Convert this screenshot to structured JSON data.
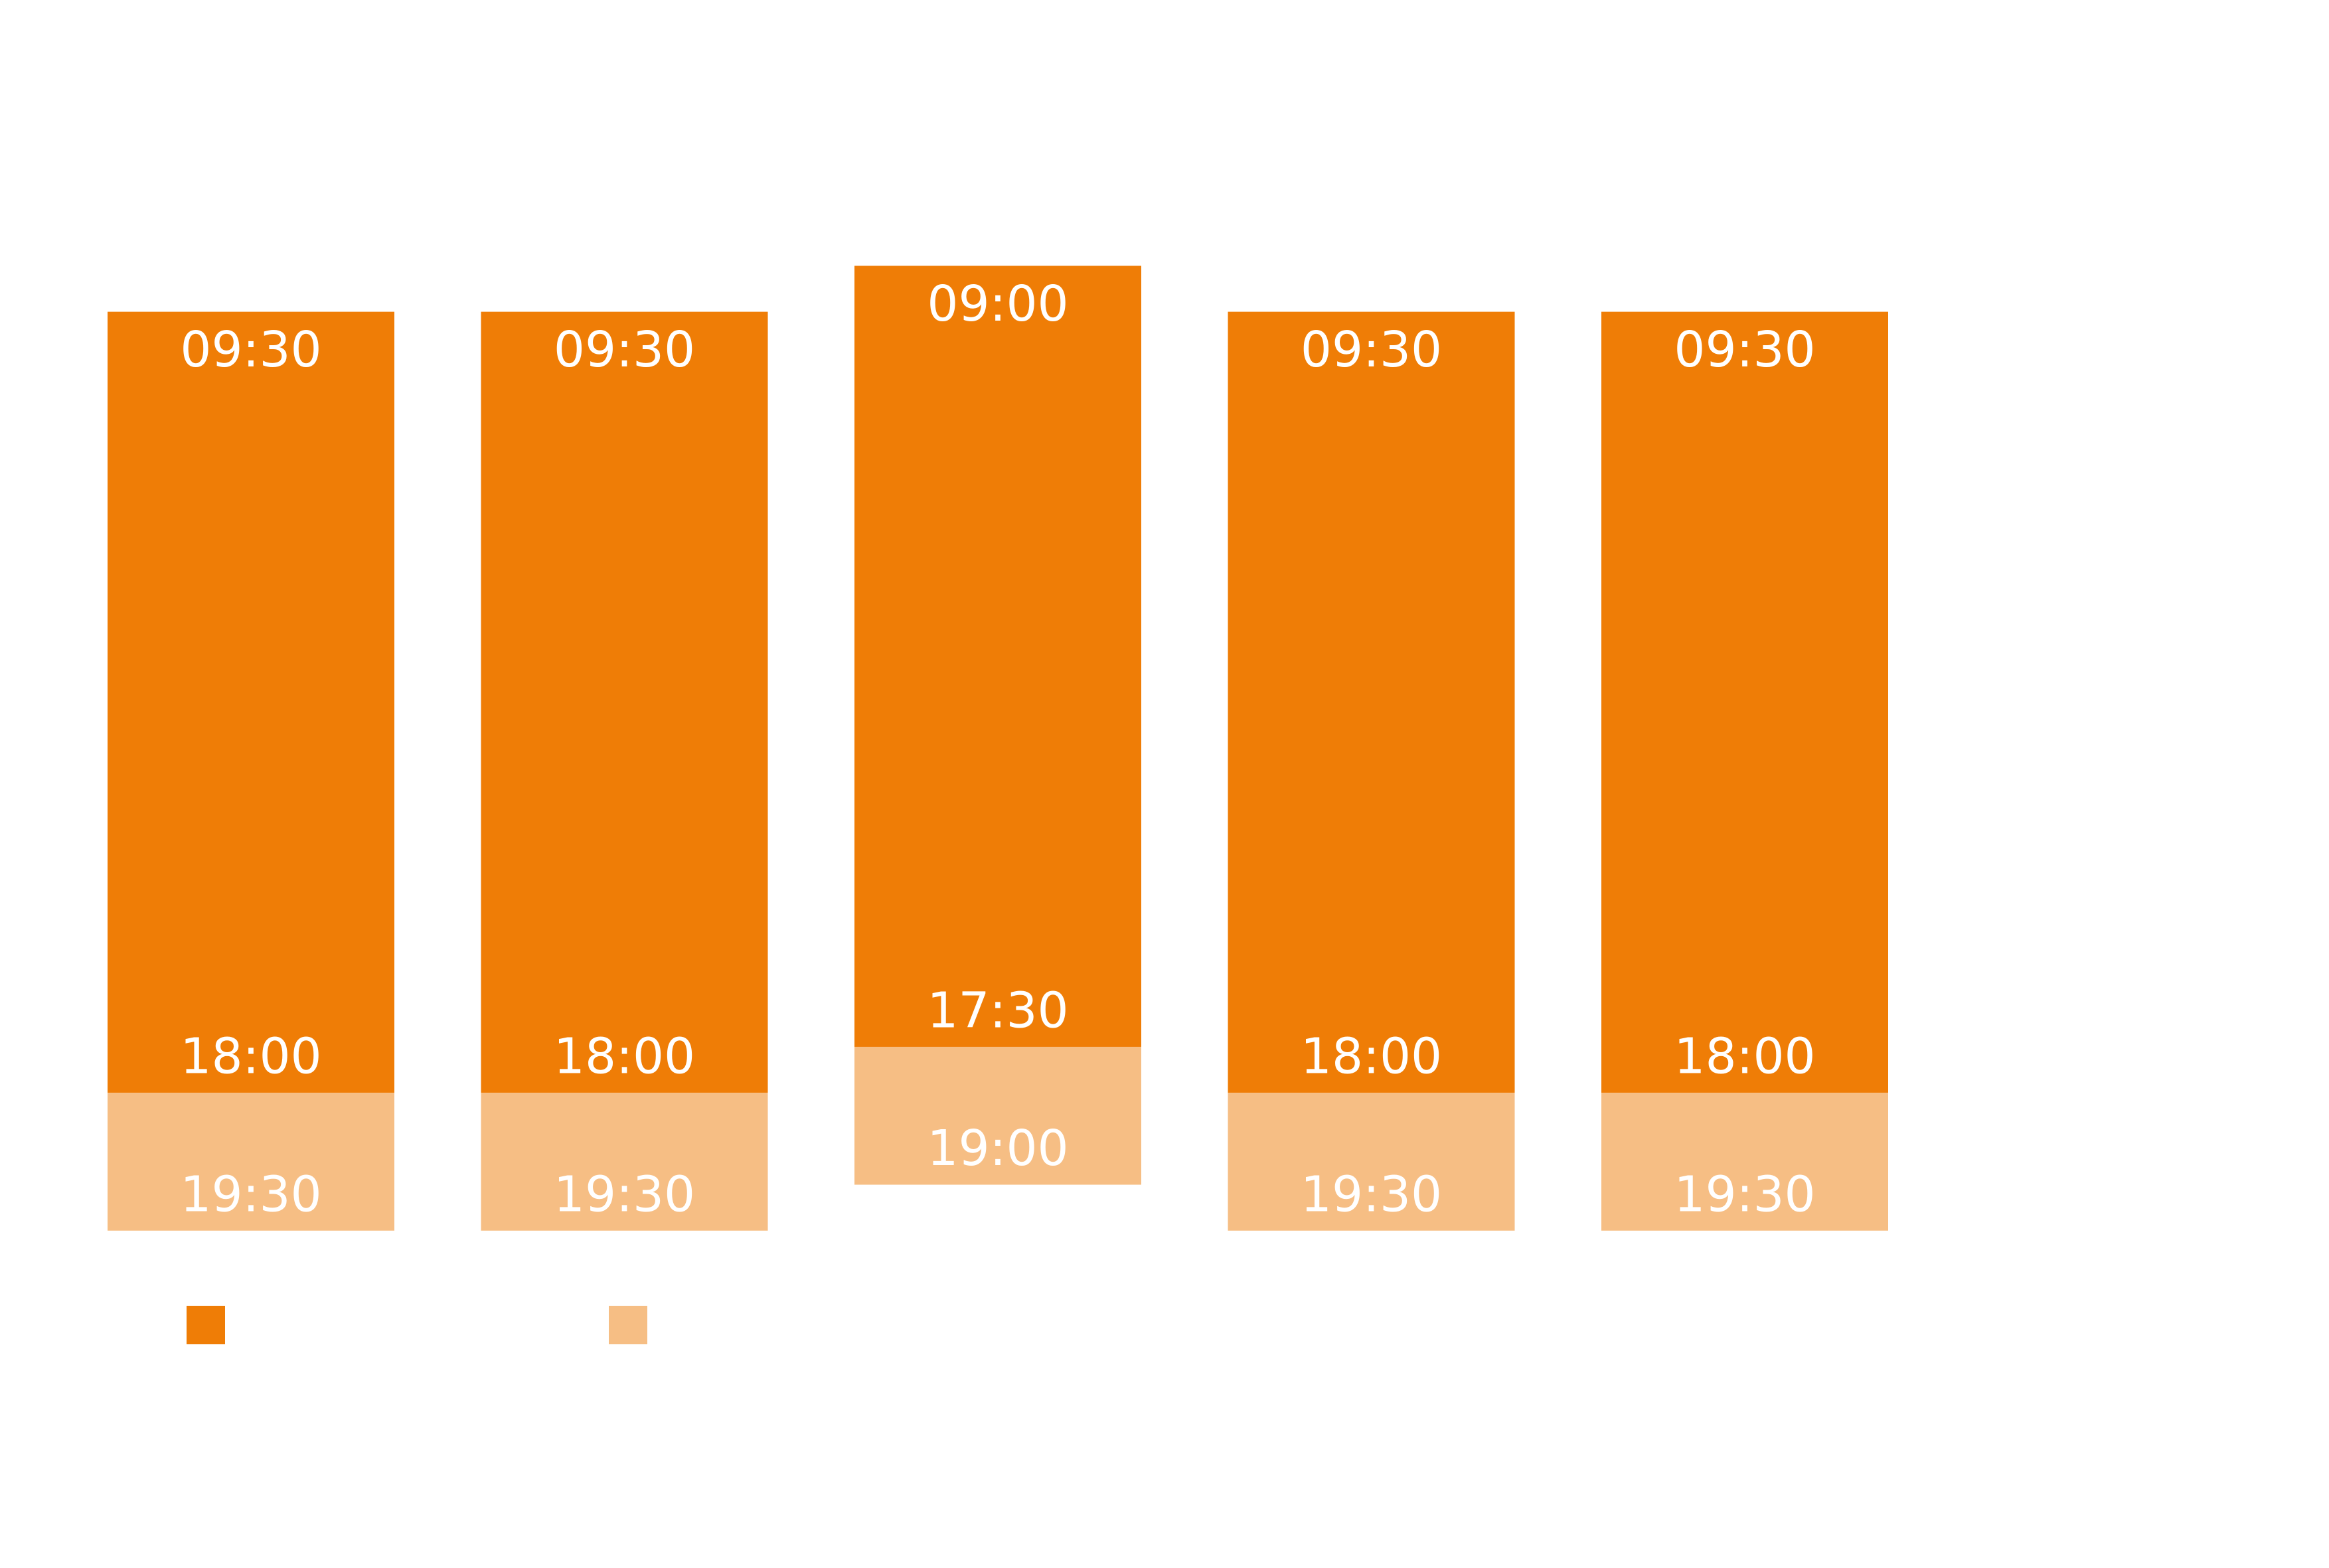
{
  "chart_data": {
    "type": "range-bar",
    "categories": [
      null,
      null,
      null,
      null,
      null
    ],
    "starts": [
      9.5,
      9.5,
      9,
      9.5,
      9.5
    ],
    "start_labels": [
      "09:30",
      "09:30",
      "09:00",
      "09:30",
      "09:30"
    ],
    "series": [
      {
        "color": "#ef7d06",
        "values": [
          18,
          18,
          17.5,
          18,
          18
        ],
        "value_labels": [
          "18:00",
          "18:00",
          "17:30",
          "18:00",
          "18:00"
        ]
      },
      {
        "color": "#f6be84",
        "values": [
          19.5,
          19.5,
          19,
          19.5,
          19.5
        ],
        "value_labels": [
          "19:30",
          "19:30",
          "19:00",
          "19:30",
          "19:30"
        ]
      }
    ],
    "ylim": [
      8,
      20
    ],
    "legend": "bottom-left"
  }
}
